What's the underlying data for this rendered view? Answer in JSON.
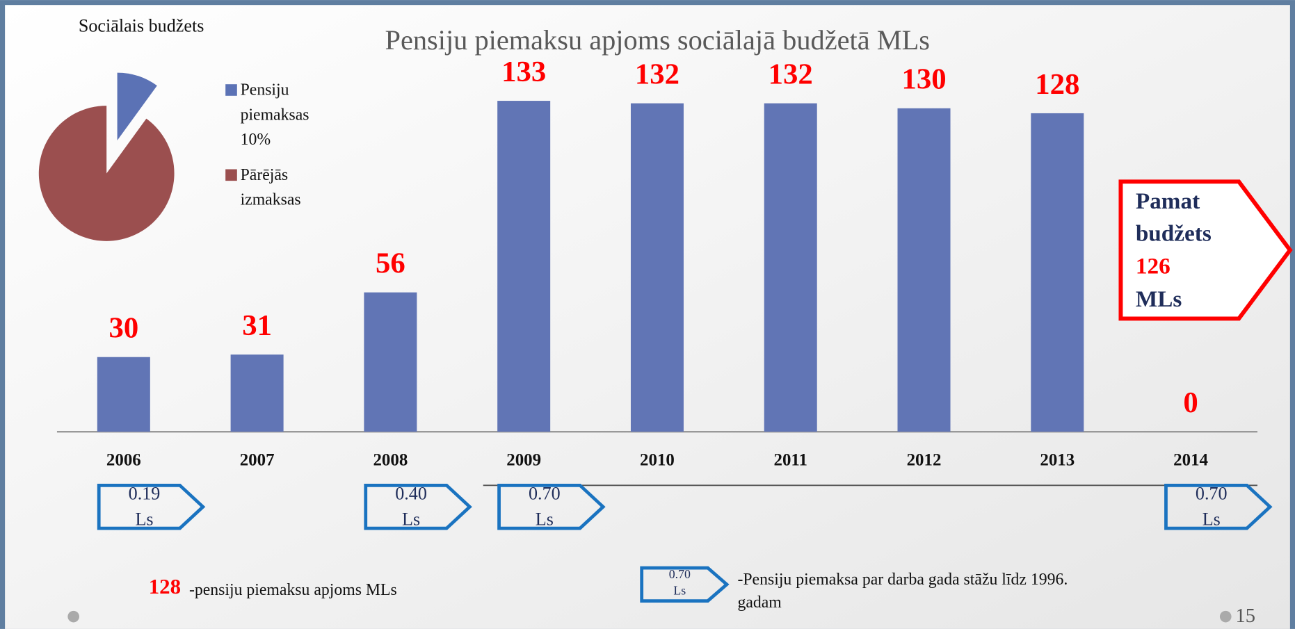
{
  "page": {
    "number": "15"
  },
  "chart_data": [
    {
      "type": "pie",
      "title": "Sociālais budžets",
      "categories": [
        "Pensiju piemaksas 10%",
        "Pārējās izmaksas"
      ],
      "values": [
        10,
        90
      ],
      "colors": [
        "#5b72b5",
        "#9b4f4f"
      ],
      "legend": "right"
    },
    {
      "type": "bar",
      "title": "Pensiju piemaksu apjoms sociālajā budžetā MLs",
      "categories": [
        "2006",
        "2007",
        "2008",
        "2009",
        "2010",
        "2011",
        "2012",
        "2013",
        "2014"
      ],
      "values": [
        30,
        31,
        56,
        133,
        132,
        132,
        130,
        128,
        0
      ],
      "color": "#6175b5",
      "ylim": [
        0,
        140
      ],
      "data_labels": true
    }
  ],
  "callout": {
    "label": "Pamat budžets",
    "value": 126,
    "unit": "MLs"
  },
  "rate_tags": [
    {
      "category": "2006",
      "text": "0.19 Ls"
    },
    {
      "category": "2008",
      "text": "0.40 Ls"
    },
    {
      "category": "2009",
      "text": "0.70 Ls"
    },
    {
      "category": "2014",
      "text": "0.70 Ls"
    }
  ],
  "footnotes": [
    {
      "key": "128",
      "text": "-pensiju piemaksu apjoms MLs"
    },
    {
      "key": "0.70 Ls",
      "text": "-Pensiju piemaksa par darba gada stāžu līdz 1996. gadam"
    }
  ]
}
